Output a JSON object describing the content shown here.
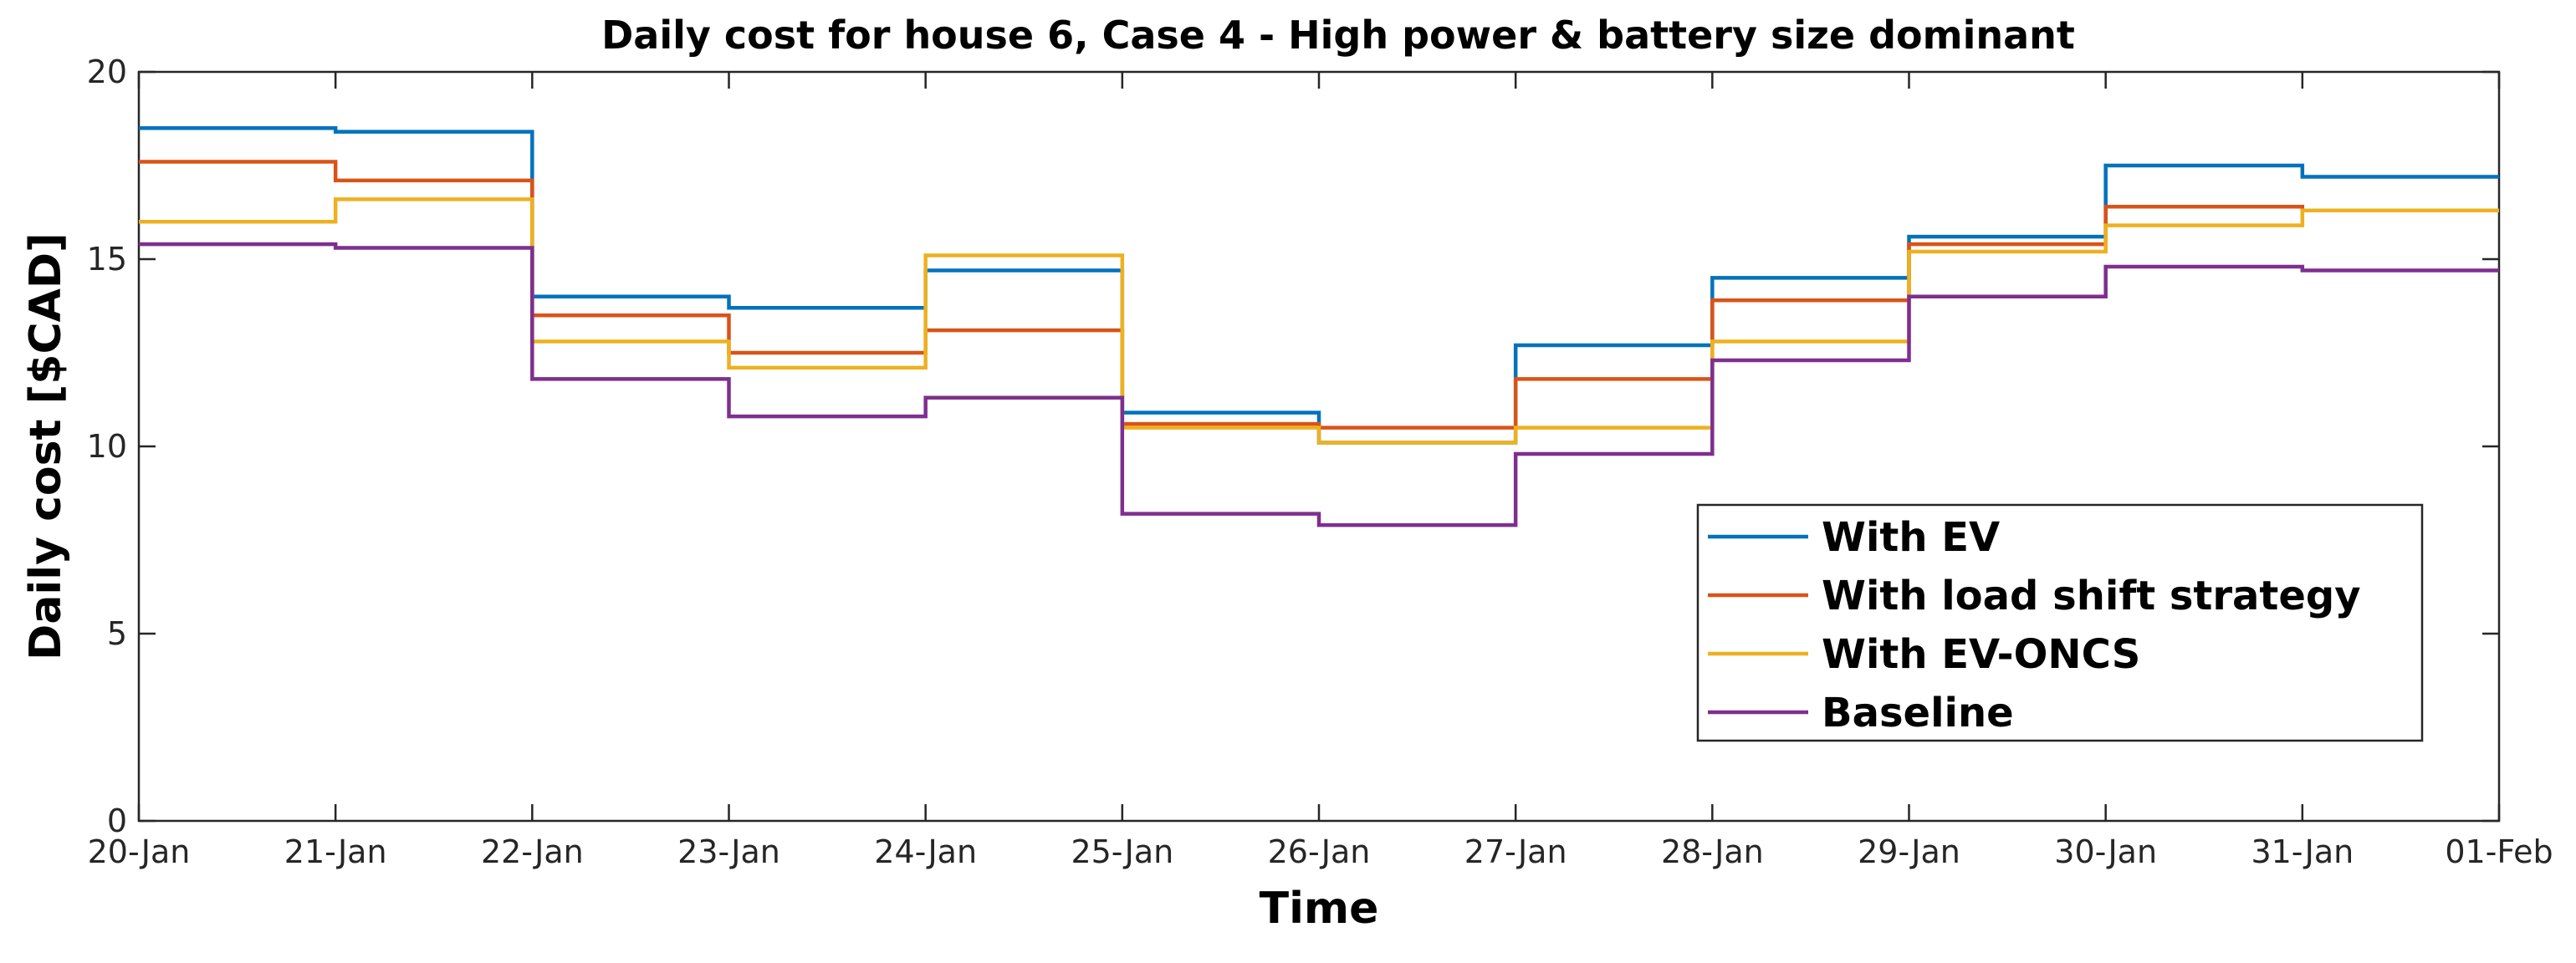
{
  "chart_data": {
    "type": "line",
    "step": "post",
    "title": "Daily cost for house 6, Case 4 - High power & battery size dominant",
    "xlabel": "Time",
    "ylabel": "Daily cost [$CAD]",
    "x_tick_labels": [
      "20-Jan",
      "21-Jan",
      "22-Jan",
      "23-Jan",
      "24-Jan",
      "25-Jan",
      "26-Jan",
      "27-Jan",
      "28-Jan",
      "29-Jan",
      "30-Jan",
      "31-Jan",
      "01-Feb"
    ],
    "ylim": [
      0,
      20
    ],
    "yticks": [
      0,
      5,
      10,
      15,
      20
    ],
    "legend_position": "lower-right (inside axes)",
    "grid": false,
    "series": [
      {
        "name": "With EV",
        "color": "#0072BD",
        "values": [
          18.5,
          18.4,
          14.0,
          13.7,
          14.7,
          10.9,
          10.1,
          12.7,
          14.5,
          15.6,
          17.5,
          17.2
        ]
      },
      {
        "name": "With load shift strategy",
        "color": "#D95319",
        "values": [
          17.6,
          17.1,
          13.5,
          12.5,
          13.1,
          10.6,
          10.5,
          11.8,
          13.9,
          15.4,
          16.4,
          16.3
        ]
      },
      {
        "name": "With EV-ONCS",
        "color": "#EDB120",
        "values": [
          16.0,
          16.6,
          12.8,
          12.1,
          15.1,
          10.5,
          10.1,
          10.5,
          12.8,
          15.2,
          15.9,
          16.3
        ]
      },
      {
        "name": "Baseline",
        "color": "#7E2F8E",
        "values": [
          15.4,
          15.3,
          11.8,
          10.8,
          11.3,
          8.2,
          7.9,
          9.8,
          12.3,
          14.0,
          14.8,
          14.7
        ]
      }
    ]
  }
}
